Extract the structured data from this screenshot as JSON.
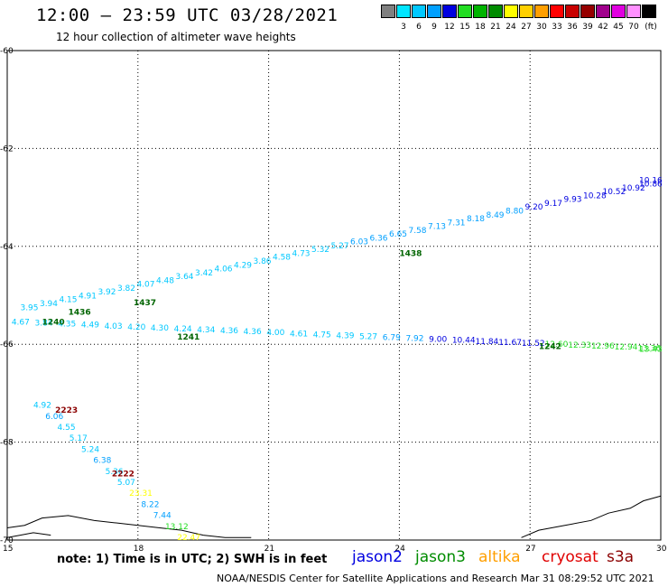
{
  "header": {
    "title": "12:00 – 23:59 UTC 03/28/2021",
    "subtitle": "12 hour collection of altimeter wave heights"
  },
  "color_scale": {
    "unit": "(ft)",
    "bins": [
      {
        "label": "",
        "color": "#808080"
      },
      {
        "label": "3",
        "color": "#00e5ff"
      },
      {
        "label": "6",
        "color": "#00c8ff"
      },
      {
        "label": "9",
        "color": "#00a0ff"
      },
      {
        "label": "12",
        "color": "#0000e0"
      },
      {
        "label": "15",
        "color": "#22dd22"
      },
      {
        "label": "18",
        "color": "#00b400"
      },
      {
        "label": "21",
        "color": "#008c00"
      },
      {
        "label": "24",
        "color": "#ffff00"
      },
      {
        "label": "27",
        "color": "#ffd000"
      },
      {
        "label": "30",
        "color": "#ff9f00"
      },
      {
        "label": "33",
        "color": "#ff0000"
      },
      {
        "label": "36",
        "color": "#c80000"
      },
      {
        "label": "39",
        "color": "#960000"
      },
      {
        "label": "42",
        "color": "#a0008c"
      },
      {
        "label": "45",
        "color": "#e000e0"
      },
      {
        "label": "70",
        "color": "#ff90ff"
      },
      {
        "label": "",
        "color": "#000000"
      }
    ]
  },
  "axes": {
    "lat_labels": [
      "-60",
      "-62",
      "-64",
      "-66",
      "-68",
      "-70"
    ],
    "lon_labels": [
      "15",
      "18",
      "21",
      "24",
      "27",
      "30"
    ]
  },
  "passes": [
    {
      "label": "1436",
      "color": "#006400",
      "lon": 16.4,
      "lat": -65.4
    },
    {
      "label": "1437",
      "color": "#006400",
      "lon": 17.9,
      "lat": -65.2
    },
    {
      "label": "1240",
      "color": "#006400",
      "lon": 15.8,
      "lat": -65.6
    },
    {
      "label": "1241",
      "color": "#006400",
      "lon": 18.9,
      "lat": -65.9
    },
    {
      "label": "1438",
      "color": "#006400",
      "lon": 24.0,
      "lat": -64.2
    },
    {
      "label": "1242",
      "color": "#006400",
      "lon": 27.2,
      "lat": -66.1
    },
    {
      "label": "2223",
      "color": "#8b0000",
      "lon": 16.1,
      "lat": -67.4
    },
    {
      "label": "2222",
      "color": "#8b0000",
      "lon": 17.4,
      "lat": -68.7
    }
  ],
  "wave_heights": {
    "track_a": [
      "3.95",
      "3.94",
      "4.15",
      "4.91",
      "3.92",
      "3.82",
      "4.07",
      "4.48",
      "3.64",
      "3.42",
      "4.06",
      "4.29",
      "3.86",
      "4.58",
      "4.73",
      "5.32",
      "5.27",
      "6.03",
      "6.36",
      "6.65",
      "7.58",
      "7.13",
      "7.31",
      "8.18",
      "8.49",
      "8.80",
      "9.20",
      "9.17",
      "9.93",
      "10.28",
      "10.52",
      "10.92",
      "10.86",
      "10.16"
    ],
    "track_b": [
      "4.67",
      "3.84",
      "4.35",
      "4.49",
      "4.03",
      "4.20",
      "4.30",
      "4.24",
      "4.34",
      "4.36",
      "4.36",
      "4.00",
      "4.61",
      "4.75",
      "4.39",
      "5.27",
      "6.79",
      "7.92",
      "9.00",
      "10.44",
      "11.84",
      "11.67",
      "11.52",
      "12.60",
      "12.33",
      "12.96",
      "12.94",
      "13.36",
      "13.43"
    ],
    "track_c": [
      "4.92",
      "6.06",
      "4.55",
      "5.17",
      "5.24",
      "6.38",
      "5.36",
      "5.07",
      "23.31",
      "8.22",
      "7.44",
      "13.12",
      "22.47"
    ]
  },
  "note": "note: 1) Time is in UTC; 2) SWH is in feet",
  "legend": [
    {
      "label": "jason2",
      "color": "#0000e0"
    },
    {
      "label": "jason3",
      "color": "#008c00"
    },
    {
      "label": "altika",
      "color": "#ff9f00"
    },
    {
      "label": "cryosat",
      "color": "#e00000"
    },
    {
      "label": "s3a",
      "color": "#8b0000"
    }
  ],
  "credit": "NOAA/NESDIS Center for Satellite Applications and Research    Mar 31 08:29:52 UTC 2021"
}
